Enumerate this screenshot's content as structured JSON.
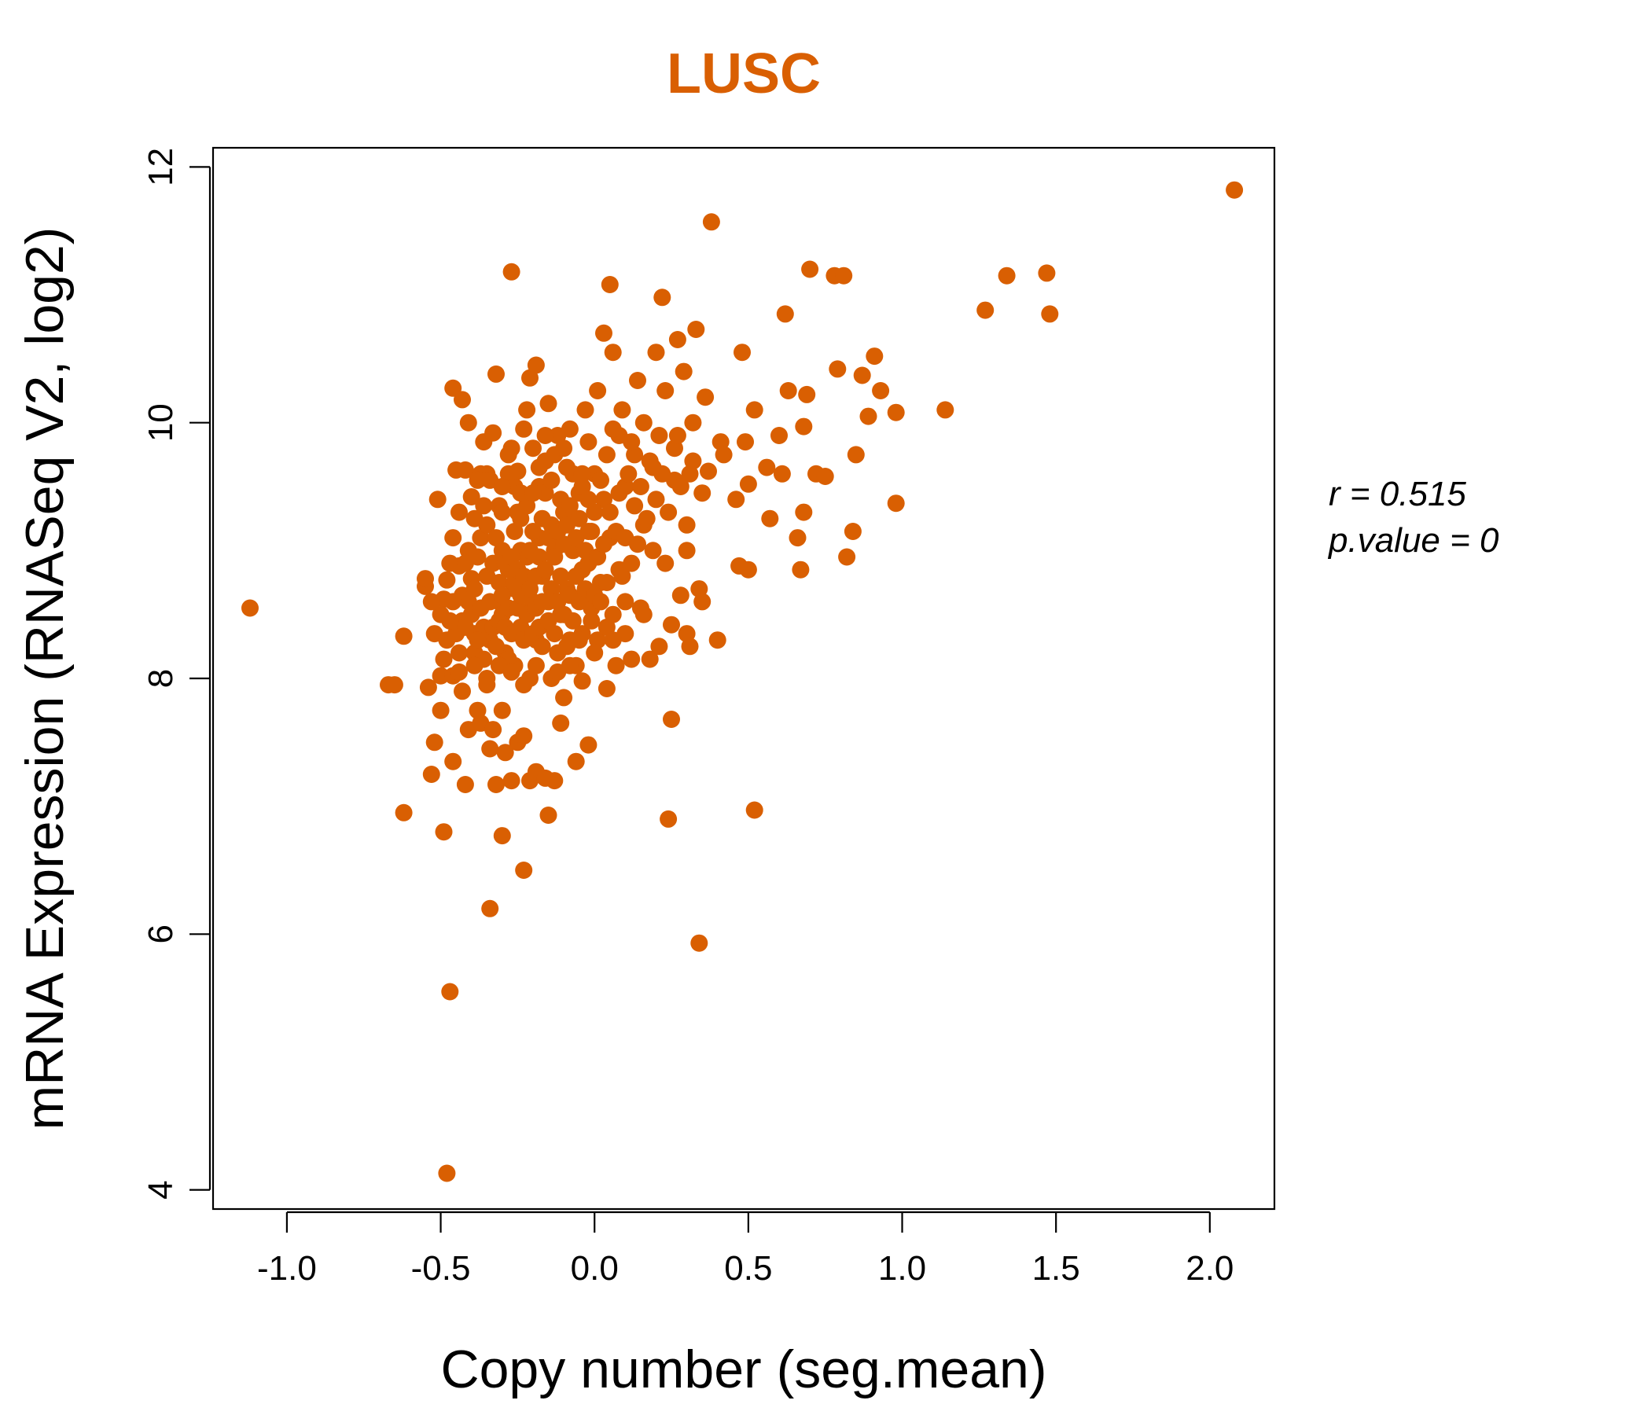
{
  "chart_data": {
    "type": "scatter",
    "title": "LUSC",
    "xlabel": "Copy number (seg.mean)",
    "ylabel": "mRNA Expression (RNASeq V2, log2)",
    "xlim": [
      -1.24,
      2.21
    ],
    "ylim": [
      3.85,
      12.15
    ],
    "xticks": [
      -1.0,
      -0.5,
      0.0,
      0.5,
      1.0,
      1.5,
      2.0
    ],
    "xtick_labels": [
      "-1.0",
      "-0.5",
      "0.0",
      "0.5",
      "1.0",
      "1.5",
      "2.0"
    ],
    "yticks": [
      4,
      6,
      8,
      10,
      12
    ],
    "ytick_labels": [
      "4",
      "6",
      "8",
      "10",
      "12"
    ],
    "grid": false,
    "legend": "none",
    "color": "#D95F02",
    "stats": {
      "r_label": "r = 0.515",
      "p_label": "p.value = 0"
    },
    "points": [
      [
        -1.12,
        8.55
      ],
      [
        -0.67,
        7.95
      ],
      [
        -0.65,
        7.95
      ],
      [
        -0.62,
        6.95
      ],
      [
        -0.62,
        8.33
      ],
      [
        -0.55,
        8.72
      ],
      [
        -0.55,
        8.78
      ],
      [
        -0.54,
        7.93
      ],
      [
        -0.53,
        7.25
      ],
      [
        -0.52,
        7.5
      ],
      [
        -0.52,
        8.35
      ],
      [
        -0.51,
        9.4
      ],
      [
        -0.5,
        7.75
      ],
      [
        -0.5,
        8.02
      ],
      [
        -0.49,
        6.8
      ],
      [
        -0.49,
        8.62
      ],
      [
        -0.48,
        4.13
      ],
      [
        -0.48,
        8.77
      ],
      [
        -0.47,
        5.55
      ],
      [
        -0.46,
        8.02
      ],
      [
        -0.46,
        7.35
      ],
      [
        -0.46,
        9.1
      ],
      [
        -0.46,
        10.27
      ],
      [
        -0.45,
        9.63
      ],
      [
        -0.44,
        8.05
      ],
      [
        -0.44,
        8.88
      ],
      [
        -0.43,
        7.9
      ],
      [
        -0.43,
        8.45
      ],
      [
        -0.43,
        10.18
      ],
      [
        -0.42,
        7.17
      ],
      [
        -0.42,
        9.63
      ],
      [
        -0.41,
        8.6
      ],
      [
        -0.41,
        7.6
      ],
      [
        -0.41,
        10.0
      ],
      [
        -0.4,
        8.78
      ],
      [
        -0.4,
        9.42
      ],
      [
        -0.39,
        8.2
      ],
      [
        -0.39,
        9.25
      ],
      [
        -0.39,
        8.35
      ],
      [
        -0.38,
        7.75
      ],
      [
        -0.38,
        8.95
      ],
      [
        -0.37,
        7.65
      ],
      [
        -0.37,
        9.6
      ],
      [
        -0.36,
        8.4
      ],
      [
        -0.36,
        9.85
      ],
      [
        -0.35,
        8.0
      ],
      [
        -0.35,
        9.6
      ],
      [
        -0.34,
        7.45
      ],
      [
        -0.34,
        8.3
      ],
      [
        -0.34,
        6.2
      ],
      [
        -0.33,
        7.6
      ],
      [
        -0.33,
        9.92
      ],
      [
        -0.32,
        7.17
      ],
      [
        -0.32,
        10.38
      ],
      [
        -0.31,
        8.6
      ],
      [
        -0.31,
        9.35
      ],
      [
        -0.3,
        6.77
      ],
      [
        -0.3,
        7.75
      ],
      [
        -0.3,
        8.5
      ],
      [
        -0.3,
        9.0
      ],
      [
        -0.29,
        7.42
      ],
      [
        -0.29,
        8.2
      ],
      [
        -0.28,
        9.6
      ],
      [
        -0.28,
        8.85
      ],
      [
        -0.27,
        7.2
      ],
      [
        -0.27,
        9.8
      ],
      [
        -0.27,
        11.18
      ],
      [
        -0.26,
        8.1
      ],
      [
        -0.26,
        8.7
      ],
      [
        -0.26,
        9.5
      ],
      [
        -0.25,
        7.5
      ],
      [
        -0.25,
        9.3
      ],
      [
        -0.24,
        8.4
      ],
      [
        -0.24,
        9.0
      ],
      [
        -0.23,
        6.5
      ],
      [
        -0.23,
        7.55
      ],
      [
        -0.23,
        9.95
      ],
      [
        -0.22,
        8.95
      ],
      [
        -0.22,
        10.1
      ],
      [
        -0.21,
        7.2
      ],
      [
        -0.21,
        8.0
      ],
      [
        -0.21,
        10.35
      ],
      [
        -0.2,
        8.6
      ],
      [
        -0.2,
        9.8
      ],
      [
        -0.19,
        7.27
      ],
      [
        -0.19,
        8.3
      ],
      [
        -0.19,
        10.45
      ],
      [
        -0.18,
        9.1
      ],
      [
        -0.18,
        9.5
      ],
      [
        -0.17,
        8.8
      ],
      [
        -0.16,
        7.22
      ],
      [
        -0.16,
        9.7
      ],
      [
        -0.15,
        6.93
      ],
      [
        -0.15,
        8.6
      ],
      [
        -0.15,
        10.15
      ],
      [
        -0.14,
        8.0
      ],
      [
        -0.14,
        9.2
      ],
      [
        -0.13,
        7.2
      ],
      [
        -0.13,
        9.0
      ],
      [
        -0.12,
        8.2
      ],
      [
        -0.12,
        9.9
      ],
      [
        -0.11,
        7.65
      ],
      [
        -0.11,
        8.5
      ],
      [
        -0.1,
        9.3
      ],
      [
        -0.1,
        7.85
      ],
      [
        -0.09,
        8.7
      ],
      [
        -0.09,
        9.65
      ],
      [
        -0.08,
        8.3
      ],
      [
        -0.07,
        9.0
      ],
      [
        -0.06,
        7.35
      ],
      [
        -0.06,
        8.1
      ],
      [
        -0.05,
        9.45
      ],
      [
        -0.04,
        7.98
      ],
      [
        -0.04,
        8.85
      ],
      [
        -0.03,
        10.1
      ],
      [
        -0.02,
        7.48
      ],
      [
        -0.02,
        9.15
      ],
      [
        -0.01,
        8.55
      ],
      [
        0.0,
        9.6
      ],
      [
        0.01,
        8.3
      ],
      [
        0.01,
        10.25
      ],
      [
        0.02,
        8.75
      ],
      [
        0.03,
        9.4
      ],
      [
        0.03,
        10.7
      ],
      [
        0.04,
        7.92
      ],
      [
        0.04,
        8.4
      ],
      [
        0.05,
        9.1
      ],
      [
        0.05,
        11.08
      ],
      [
        0.06,
        10.55
      ],
      [
        0.07,
        8.1
      ],
      [
        0.08,
        8.85
      ],
      [
        0.08,
        9.9
      ],
      [
        0.1,
        8.35
      ],
      [
        0.1,
        9.5
      ],
      [
        0.12,
        8.15
      ],
      [
        0.13,
        9.75
      ],
      [
        0.14,
        10.33
      ],
      [
        0.15,
        8.55
      ],
      [
        0.16,
        9.2
      ],
      [
        0.18,
        8.15
      ],
      [
        0.19,
        9.0
      ],
      [
        0.2,
        10.55
      ],
      [
        0.21,
        8.25
      ],
      [
        0.21,
        9.9
      ],
      [
        0.22,
        10.98
      ],
      [
        0.23,
        8.9
      ],
      [
        0.24,
        6.9
      ],
      [
        0.25,
        7.68
      ],
      [
        0.25,
        8.42
      ],
      [
        0.26,
        9.55
      ],
      [
        0.27,
        10.65
      ],
      [
        0.28,
        8.65
      ],
      [
        0.29,
        10.4
      ],
      [
        0.3,
        8.35
      ],
      [
        0.3,
        9.0
      ],
      [
        0.31,
        8.25
      ],
      [
        0.32,
        10.0
      ],
      [
        0.33,
        10.73
      ],
      [
        0.34,
        5.93
      ],
      [
        0.34,
        8.7
      ],
      [
        0.35,
        8.6
      ],
      [
        0.36,
        10.2
      ],
      [
        0.37,
        9.62
      ],
      [
        0.38,
        11.57
      ],
      [
        0.4,
        8.3
      ],
      [
        0.41,
        9.85
      ],
      [
        0.42,
        9.75
      ],
      [
        0.46,
        9.4
      ],
      [
        0.47,
        8.88
      ],
      [
        0.48,
        10.55
      ],
      [
        0.49,
        9.85
      ],
      [
        0.5,
        8.85
      ],
      [
        0.5,
        9.52
      ],
      [
        0.52,
        6.97
      ],
      [
        0.52,
        10.1
      ],
      [
        0.56,
        9.65
      ],
      [
        0.57,
        9.25
      ],
      [
        0.6,
        9.9
      ],
      [
        0.61,
        9.6
      ],
      [
        0.62,
        10.85
      ],
      [
        0.63,
        10.25
      ],
      [
        0.66,
        9.1
      ],
      [
        0.67,
        8.85
      ],
      [
        0.68,
        9.3
      ],
      [
        0.68,
        9.97
      ],
      [
        0.69,
        10.22
      ],
      [
        0.7,
        11.2
      ],
      [
        0.72,
        9.6
      ],
      [
        0.75,
        9.58
      ],
      [
        0.78,
        11.15
      ],
      [
        0.79,
        10.42
      ],
      [
        0.81,
        11.15
      ],
      [
        0.82,
        8.95
      ],
      [
        0.84,
        9.15
      ],
      [
        0.85,
        9.75
      ],
      [
        0.87,
        10.37
      ],
      [
        0.89,
        10.05
      ],
      [
        0.91,
        10.52
      ],
      [
        0.93,
        10.25
      ],
      [
        0.98,
        9.37
      ],
      [
        0.98,
        10.08
      ],
      [
        1.14,
        10.1
      ],
      [
        1.27,
        10.88
      ],
      [
        1.34,
        11.15
      ],
      [
        1.47,
        11.17
      ],
      [
        1.48,
        10.85
      ],
      [
        2.08,
        11.82
      ],
      [
        -0.5,
        8.5
      ],
      [
        -0.48,
        8.3
      ],
      [
        -0.47,
        8.9
      ],
      [
        -0.45,
        8.35
      ],
      [
        -0.44,
        8.2
      ],
      [
        -0.43,
        8.65
      ],
      [
        -0.42,
        8.4
      ],
      [
        -0.41,
        9.0
      ],
      [
        -0.4,
        8.5
      ],
      [
        -0.39,
        8.7
      ],
      [
        -0.38,
        8.3
      ],
      [
        -0.37,
        8.55
      ],
      [
        -0.37,
        9.1
      ],
      [
        -0.36,
        8.15
      ],
      [
        -0.35,
        8.8
      ],
      [
        -0.35,
        9.2
      ],
      [
        -0.34,
        8.6
      ],
      [
        -0.33,
        8.4
      ],
      [
        -0.33,
        8.9
      ],
      [
        -0.32,
        9.1
      ],
      [
        -0.32,
        8.25
      ],
      [
        -0.31,
        8.75
      ],
      [
        -0.31,
        8.45
      ],
      [
        -0.3,
        9.3
      ],
      [
        -0.3,
        8.65
      ],
      [
        -0.29,
        8.9
      ],
      [
        -0.29,
        8.4
      ],
      [
        -0.28,
        8.15
      ],
      [
        -0.28,
        8.55
      ],
      [
        -0.27,
        8.95
      ],
      [
        -0.27,
        8.35
      ],
      [
        -0.26,
        8.75
      ],
      [
        -0.26,
        9.15
      ],
      [
        -0.25,
        8.55
      ],
      [
        -0.25,
        8.85
      ],
      [
        -0.24,
        8.65
      ],
      [
        -0.24,
        9.25
      ],
      [
        -0.23,
        8.3
      ],
      [
        -0.23,
        8.8
      ],
      [
        -0.22,
        8.5
      ],
      [
        -0.22,
        9.35
      ],
      [
        -0.21,
        8.7
      ],
      [
        -0.21,
        9.0
      ],
      [
        -0.2,
        8.35
      ],
      [
        -0.2,
        9.15
      ],
      [
        -0.19,
        8.8
      ],
      [
        -0.19,
        8.55
      ],
      [
        -0.18,
        8.4
      ],
      [
        -0.18,
        8.95
      ],
      [
        -0.17,
        9.25
      ],
      [
        -0.17,
        8.6
      ],
      [
        -0.16,
        8.85
      ],
      [
        -0.16,
        9.45
      ],
      [
        -0.15,
        8.45
      ],
      [
        -0.15,
        9.1
      ],
      [
        -0.14,
        8.7
      ],
      [
        -0.14,
        9.55
      ],
      [
        -0.13,
        8.35
      ],
      [
        -0.13,
        8.95
      ],
      [
        -0.12,
        9.15
      ],
      [
        -0.12,
        8.6
      ],
      [
        -0.11,
        9.4
      ],
      [
        -0.11,
        8.8
      ],
      [
        -0.1,
        8.5
      ],
      [
        -0.1,
        9.05
      ],
      [
        -0.09,
        8.25
      ],
      [
        -0.09,
        9.2
      ],
      [
        -0.08,
        8.65
      ],
      [
        -0.08,
        9.35
      ],
      [
        -0.07,
        8.45
      ],
      [
        -0.07,
        9.6
      ],
      [
        -0.06,
        8.8
      ],
      [
        -0.06,
        9.1
      ],
      [
        -0.05,
        8.6
      ],
      [
        -0.05,
        9.25
      ],
      [
        -0.04,
        8.35
      ],
      [
        -0.04,
        9.5
      ],
      [
        -0.03,
        8.7
      ],
      [
        -0.03,
        9.0
      ],
      [
        -0.02,
        8.9
      ],
      [
        -0.02,
        9.4
      ],
      [
        -0.01,
        8.45
      ],
      [
        -0.01,
        9.15
      ],
      [
        0.0,
        8.65
      ],
      [
        0.0,
        9.3
      ],
      [
        0.01,
        8.95
      ],
      [
        0.02,
        9.55
      ],
      [
        0.02,
        8.6
      ],
      [
        0.03,
        9.05
      ],
      [
        0.04,
        8.75
      ],
      [
        0.05,
        9.3
      ],
      [
        0.06,
        8.5
      ],
      [
        0.07,
        9.15
      ],
      [
        0.08,
        9.45
      ],
      [
        0.09,
        8.8
      ],
      [
        0.1,
        9.1
      ],
      [
        0.11,
        9.6
      ],
      [
        0.12,
        8.9
      ],
      [
        0.13,
        9.35
      ],
      [
        0.14,
        9.05
      ],
      [
        0.15,
        9.5
      ],
      [
        0.17,
        9.25
      ],
      [
        0.18,
        9.7
      ],
      [
        0.2,
        9.4
      ],
      [
        0.22,
        9.6
      ],
      [
        0.24,
        9.3
      ],
      [
        0.26,
        9.8
      ],
      [
        0.28,
        9.5
      ],
      [
        0.3,
        9.2
      ],
      [
        0.32,
        9.7
      ],
      [
        -0.53,
        8.6
      ],
      [
        -0.49,
        8.15
      ],
      [
        -0.46,
        8.6
      ],
      [
        -0.44,
        9.3
      ],
      [
        -0.42,
        8.9
      ],
      [
        -0.38,
        9.55
      ],
      [
        -0.36,
        9.35
      ],
      [
        -0.34,
        9.55
      ],
      [
        -0.3,
        9.5
      ],
      [
        -0.28,
        9.75
      ],
      [
        -0.25,
        9.62
      ],
      [
        -0.24,
        9.45
      ],
      [
        -0.2,
        9.45
      ],
      [
        -0.18,
        9.65
      ],
      [
        -0.16,
        9.9
      ],
      [
        -0.13,
        9.75
      ],
      [
        -0.1,
        9.8
      ],
      [
        -0.08,
        9.95
      ],
      [
        -0.04,
        9.6
      ],
      [
        -0.02,
        9.85
      ],
      [
        0.04,
        9.75
      ],
      [
        0.06,
        9.95
      ],
      [
        0.09,
        10.1
      ],
      [
        0.12,
        9.85
      ],
      [
        0.16,
        10.0
      ],
      [
        0.19,
        9.65
      ],
      [
        0.23,
        10.25
      ],
      [
        0.27,
        9.9
      ],
      [
        0.31,
        9.6
      ],
      [
        0.35,
        9.45
      ],
      [
        -0.47,
        8.45
      ],
      [
        -0.39,
        8.1
      ],
      [
        -0.35,
        7.95
      ],
      [
        -0.31,
        8.1
      ],
      [
        -0.27,
        8.05
      ],
      [
        -0.23,
        7.95
      ],
      [
        -0.19,
        8.1
      ],
      [
        -0.17,
        8.25
      ],
      [
        -0.12,
        8.05
      ],
      [
        -0.08,
        8.1
      ],
      [
        -0.05,
        8.3
      ],
      [
        0.0,
        8.2
      ],
      [
        0.06,
        8.3
      ],
      [
        0.1,
        8.6
      ],
      [
        0.16,
        8.5
      ]
    ]
  }
}
